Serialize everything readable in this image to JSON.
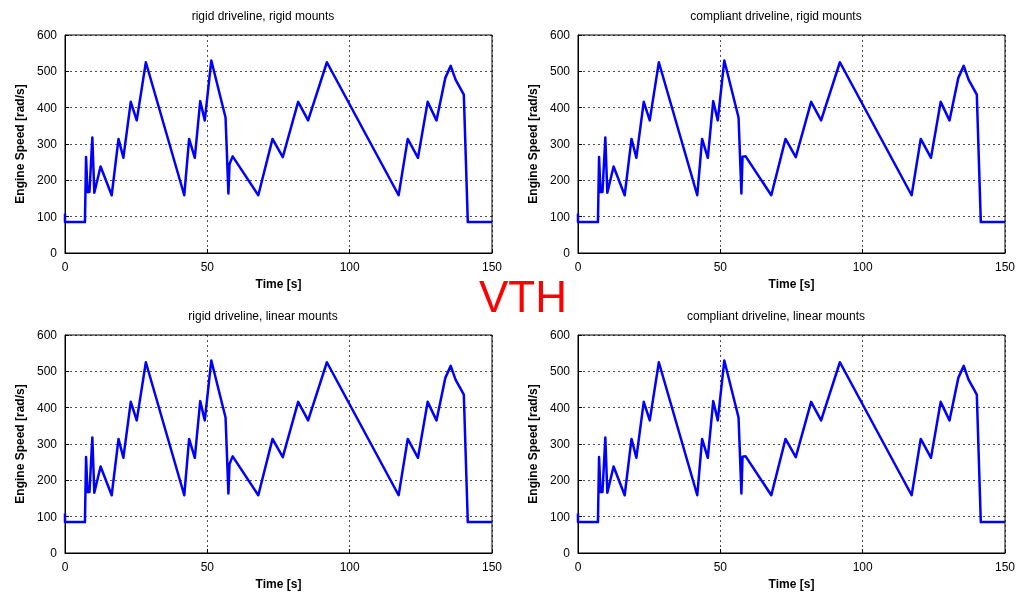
{
  "chart_data": [
    {
      "type": "line",
      "title": "rigid driveline, rigid mounts",
      "xlabel": "Time [s]",
      "ylabel": "Engine Speed [rad/s]",
      "annotations": [
        "VTH"
      ],
      "xlim": [
        0,
        150
      ],
      "xticks": [
        0,
        50,
        100,
        150
      ],
      "ylim": [
        0,
        600
      ],
      "yticks": [
        0,
        100,
        200,
        300,
        400,
        500,
        600
      ],
      "grid": true,
      "marker": "none",
      "line_style": "solid",
      "series": [
        {
          "color": "#0000ff",
          "x": [
            0,
            0,
            7,
            7.4,
            7.9,
            8.6,
            9.6,
            10.3,
            12.5,
            16.4,
            18.8,
            20.5,
            23.1,
            25.2,
            28.4,
            41.9,
            43.6,
            45.6,
            47.5,
            49.1,
            51.4,
            56.4,
            57.4,
            57.8,
            58.9,
            67.9,
            72.9,
            76.5,
            81.9,
            85.4,
            92,
            117.2,
            120.4,
            124,
            127.4,
            130.5,
            133.6,
            135.5,
            137.2,
            140.1,
            141.5,
            150
          ],
          "values": [
            109,
            85,
            85,
            264,
            168,
            168,
            318,
            166,
            238,
            159,
            314,
            262,
            416,
            365,
            525,
            159,
            314,
            262,
            418,
            365,
            530,
            373,
            164,
            245,
            266,
            159,
            314,
            264,
            416,
            365,
            525,
            159,
            314,
            262,
            416,
            365,
            482,
            515,
            477,
            436,
            85,
            85
          ]
        }
      ]
    },
    {
      "type": "line",
      "title": "compliant driveline, rigid mounts",
      "xlabel": "Time [s]",
      "ylabel": "Engine Speed [rad/s]",
      "xlim": [
        0,
        150
      ],
      "xticks": [
        0,
        50,
        100,
        150
      ],
      "ylim": [
        0,
        600
      ],
      "yticks": [
        0,
        100,
        200,
        300,
        400,
        500,
        600
      ],
      "grid": true,
      "marker": "none",
      "line_style": "solid",
      "series": [
        {
          "color": "#0000ff",
          "x": [
            0,
            0,
            7,
            7.4,
            7.9,
            8.6,
            9.6,
            10.3,
            12.5,
            16.4,
            18.8,
            20.5,
            23.1,
            25.2,
            28.4,
            41.9,
            43.6,
            45.6,
            47.5,
            49.1,
            51.4,
            56.4,
            57.4,
            57.8,
            58.9,
            67.9,
            72.9,
            76.5,
            81.9,
            85.4,
            92,
            117.2,
            120.4,
            124,
            127.4,
            130.5,
            133.6,
            135.5,
            137.2,
            140.1,
            141.5,
            150
          ],
          "values": [
            109,
            85,
            85,
            264,
            168,
            168,
            318,
            166,
            238,
            159,
            314,
            262,
            416,
            365,
            525,
            159,
            314,
            262,
            418,
            365,
            530,
            373,
            164,
            265,
            266,
            159,
            314,
            264,
            416,
            365,
            525,
            159,
            314,
            262,
            416,
            365,
            482,
            515,
            477,
            436,
            85,
            85
          ]
        }
      ]
    },
    {
      "type": "line",
      "title": "rigid driveline, linear mounts",
      "xlabel": "Time [s]",
      "ylabel": "Engine Speed [rad/s]",
      "xlim": [
        0,
        150
      ],
      "xticks": [
        0,
        50,
        100,
        150
      ],
      "ylim": [
        0,
        600
      ],
      "yticks": [
        0,
        100,
        200,
        300,
        400,
        500,
        600
      ],
      "grid": true,
      "marker": "none",
      "line_style": "solid",
      "series": [
        {
          "color": "#0000ff",
          "x": [
            0,
            0,
            7,
            7.4,
            7.9,
            8.6,
            9.6,
            10.3,
            12.5,
            16.4,
            18.8,
            20.5,
            23.1,
            25.2,
            28.4,
            41.9,
            43.6,
            45.6,
            47.5,
            49.1,
            51.4,
            56.4,
            57.4,
            57.8,
            58.9,
            67.9,
            72.9,
            76.5,
            81.9,
            85.4,
            92,
            117.2,
            120.4,
            124,
            127.4,
            130.5,
            133.6,
            135.5,
            137.2,
            140.1,
            141.5,
            150
          ],
          "values": [
            109,
            85,
            85,
            264,
            168,
            168,
            318,
            166,
            238,
            159,
            314,
            262,
            416,
            365,
            525,
            159,
            314,
            262,
            418,
            365,
            530,
            373,
            164,
            245,
            266,
            159,
            314,
            264,
            416,
            365,
            525,
            159,
            314,
            262,
            416,
            365,
            482,
            515,
            477,
            436,
            85,
            85
          ]
        }
      ]
    },
    {
      "type": "line",
      "title": "compliant driveline, linear mounts",
      "xlabel": "Time [s]",
      "ylabel": "Engine Speed [rad/s]",
      "xlim": [
        0,
        150
      ],
      "xticks": [
        0,
        50,
        100,
        150
      ],
      "ylim": [
        0,
        600
      ],
      "yticks": [
        0,
        100,
        200,
        300,
        400,
        500,
        600
      ],
      "grid": true,
      "marker": "none",
      "line_style": "solid",
      "series": [
        {
          "color": "#0000ff",
          "x": [
            0,
            0,
            7,
            7.4,
            7.9,
            8.6,
            9.6,
            10.3,
            12.5,
            16.4,
            18.8,
            20.5,
            23.1,
            25.2,
            28.4,
            41.9,
            43.6,
            45.6,
            47.5,
            49.1,
            51.4,
            56.4,
            57.4,
            57.8,
            58.9,
            67.9,
            72.9,
            76.5,
            81.9,
            85.4,
            92,
            117.2,
            120.4,
            124,
            127.4,
            130.5,
            133.6,
            135.5,
            137.2,
            140.1,
            141.5,
            150
          ],
          "values": [
            109,
            85,
            85,
            264,
            168,
            168,
            318,
            166,
            238,
            159,
            314,
            262,
            416,
            365,
            525,
            159,
            314,
            262,
            418,
            365,
            530,
            373,
            164,
            265,
            266,
            159,
            314,
            264,
            416,
            365,
            525,
            159,
            314,
            262,
            416,
            365,
            482,
            515,
            477,
            436,
            85,
            85
          ]
        }
      ]
    }
  ]
}
